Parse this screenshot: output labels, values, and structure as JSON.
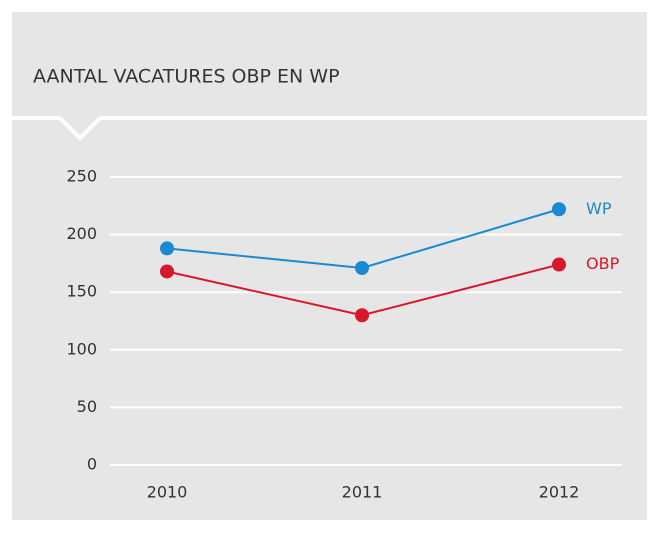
{
  "chart_data": {
    "type": "line",
    "title": "AANTAL VACATURES OBP EN WP",
    "categories": [
      "2010",
      "2011",
      "2012"
    ],
    "series": [
      {
        "name": "WP",
        "color": "#1a8ad4",
        "values": [
          188,
          171,
          222
        ]
      },
      {
        "name": "OBP",
        "color": "#d7182a",
        "values": [
          168,
          130,
          174
        ]
      }
    ],
    "ylim": [
      0,
      250
    ],
    "yticks": [
      0,
      50,
      100,
      150,
      200,
      250
    ],
    "grid": true
  }
}
